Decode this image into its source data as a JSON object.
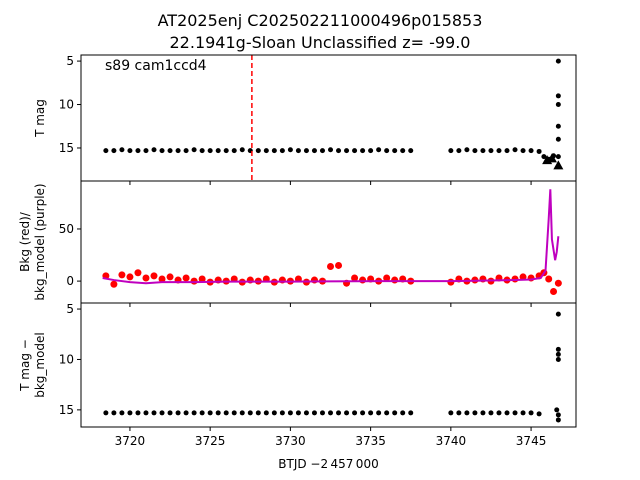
{
  "chart_data": [
    {
      "type": "scatter",
      "title": [
        "AT2025enj  C202502211000496p015853",
        "22.1941g-Sloan Unclassified z= -99.0"
      ],
      "annotation": "s89 cam1ccd4",
      "vline": 3727.6,
      "vline_color": "#ff0000",
      "ylabel": [
        "T mag"
      ],
      "xlim": [
        3716.95,
        3747.8
      ],
      "ylim": [
        18.8,
        4.3
      ],
      "xticks": [
        3720,
        3725,
        3730,
        3735,
        3740,
        3745
      ],
      "yticks": [
        5,
        10,
        15
      ],
      "show_xtick_labels": false,
      "series": [
        {
          "color": "#000000",
          "marker": "circle",
          "x": [
            3718.5,
            3719,
            3719.5,
            3720,
            3720.5,
            3721,
            3721.5,
            3722,
            3722.5,
            3723,
            3723.5,
            3724,
            3724.5,
            3725,
            3725.5,
            3726,
            3726.5,
            3727,
            3727.5,
            3728,
            3728.5,
            3729,
            3729.5,
            3730,
            3730.5,
            3731,
            3731.5,
            3732,
            3732.5,
            3733,
            3733.5,
            3734,
            3734.5,
            3735,
            3735.5,
            3736,
            3736.5,
            3737,
            3737.5,
            3740,
            3740.5,
            3741,
            3741.5,
            3742,
            3742.5,
            3743,
            3743.5,
            3744,
            3744.5,
            3745,
            3745.5,
            3745.8,
            3746.1,
            3746.4,
            3746.7,
            3746.7,
            3746.7,
            3746.7,
            3746.7,
            3746.7
          ],
          "values": [
            15.3,
            15.3,
            15.2,
            15.3,
            15.3,
            15.3,
            15.2,
            15.3,
            15.3,
            15.3,
            15.3,
            15.2,
            15.3,
            15.3,
            15.3,
            15.3,
            15.3,
            15.2,
            15.3,
            15.3,
            15.3,
            15.3,
            15.3,
            15.2,
            15.3,
            15.3,
            15.3,
            15.3,
            15.2,
            15.3,
            15.3,
            15.3,
            15.3,
            15.3,
            15.2,
            15.3,
            15.3,
            15.3,
            15.3,
            15.3,
            15.3,
            15.2,
            15.3,
            15.3,
            15.3,
            15.3,
            15.3,
            15.2,
            15.3,
            15.3,
            15.4,
            16.0,
            16.3,
            15.9,
            5,
            9,
            10,
            12.5,
            14,
            16
          ]
        },
        {
          "color": "#000000",
          "marker": "triangle",
          "x": [
            3746.0,
            3746.3,
            3746.7
          ],
          "values": [
            16.4,
            16.2,
            17.0
          ]
        }
      ]
    },
    {
      "type": "scatter",
      "ylabel": [
        "Bkg (red)/",
        "bkg_model (purple)"
      ],
      "xlim": [
        3716.95,
        3747.8
      ],
      "ylim": [
        -21,
        96
      ],
      "xticks": [
        3720,
        3725,
        3730,
        3735,
        3740,
        3745
      ],
      "yticks": [
        0,
        50
      ],
      "show_xtick_labels": false,
      "series": [
        {
          "color": "#ff0000",
          "marker": "circle",
          "x": [
            3718.5,
            3719,
            3719.5,
            3720,
            3720.5,
            3721,
            3721.5,
            3722,
            3722.5,
            3723,
            3723.5,
            3724,
            3724.5,
            3725,
            3725.5,
            3726,
            3726.5,
            3727,
            3727.5,
            3728,
            3728.5,
            3729,
            3729.5,
            3730,
            3730.5,
            3731,
            3731.5,
            3732,
            3732.5,
            3733,
            3733.5,
            3734,
            3734.5,
            3735,
            3735.5,
            3736,
            3736.5,
            3737,
            3737.5,
            3740,
            3740.5,
            3741,
            3741.5,
            3742,
            3742.5,
            3743,
            3743.5,
            3744,
            3744.5,
            3745,
            3745.5,
            3745.8,
            3746.1,
            3746.4,
            3746.7
          ],
          "values": [
            5,
            -3,
            6,
            4,
            8,
            3,
            5,
            2,
            4,
            1,
            3,
            0,
            2,
            -1,
            1,
            0,
            2,
            -1,
            1,
            0,
            2,
            -1,
            1,
            0,
            2,
            -1,
            1,
            0,
            14,
            15,
            -2,
            3,
            1,
            2,
            0,
            3,
            1,
            2,
            0,
            -1,
            2,
            0,
            1,
            2,
            0,
            3,
            1,
            2,
            4,
            3,
            5,
            8,
            2,
            -10,
            -2
          ]
        },
        {
          "color": "#bf00bf",
          "mode": "line",
          "x": [
            3718.3,
            3719,
            3720,
            3721,
            3722,
            3724,
            3726,
            3728,
            3730,
            3732,
            3734,
            3736,
            3738,
            3740,
            3742,
            3744,
            3745,
            3745.6,
            3745.9,
            3746.1,
            3746.2,
            3746.3,
            3746.4,
            3746.5,
            3746.6,
            3746.7
          ],
          "values": [
            3,
            1,
            -1,
            -2,
            -1,
            -1,
            -0.5,
            -0.5,
            -0.5,
            -0.3,
            -0.2,
            0,
            0,
            0,
            0.5,
            1,
            1.5,
            3,
            10,
            60,
            88,
            40,
            30,
            20,
            28,
            43
          ]
        }
      ]
    },
    {
      "type": "scatter",
      "ylabel": [
        "T mag −",
        "bkg_model"
      ],
      "xlabel": "BTJD −2 457 000",
      "xlim": [
        3716.95,
        3747.8
      ],
      "ylim": [
        16.7,
        4.4
      ],
      "xticks": [
        3720,
        3725,
        3730,
        3735,
        3740,
        3745
      ],
      "yticks": [
        5,
        10,
        15
      ],
      "show_xtick_labels": true,
      "series": [
        {
          "color": "#000000",
          "marker": "circle",
          "x": [
            3718.5,
            3719,
            3719.5,
            3720,
            3720.5,
            3721,
            3721.5,
            3722,
            3722.5,
            3723,
            3723.5,
            3724,
            3724.5,
            3725,
            3725.5,
            3726,
            3726.5,
            3727,
            3727.5,
            3728,
            3728.5,
            3729,
            3729.5,
            3730,
            3730.5,
            3731,
            3731.5,
            3732,
            3732.5,
            3733,
            3733.5,
            3734,
            3734.5,
            3735,
            3735.5,
            3736,
            3736.5,
            3737,
            3737.5,
            3740,
            3740.5,
            3741,
            3741.5,
            3742,
            3742.5,
            3743,
            3743.5,
            3744,
            3744.5,
            3745,
            3745.5,
            3746.6,
            3746.7,
            3746.7,
            3746.7,
            3746.7,
            3746.7,
            3746.7
          ],
          "values": [
            15.3,
            15.3,
            15.3,
            15.3,
            15.3,
            15.3,
            15.3,
            15.3,
            15.3,
            15.3,
            15.3,
            15.3,
            15.3,
            15.3,
            15.3,
            15.3,
            15.3,
            15.3,
            15.3,
            15.3,
            15.3,
            15.3,
            15.3,
            15.3,
            15.3,
            15.3,
            15.3,
            15.3,
            15.3,
            15.3,
            15.3,
            15.3,
            15.3,
            15.3,
            15.3,
            15.3,
            15.3,
            15.3,
            15.3,
            15.3,
            15.3,
            15.3,
            15.3,
            15.3,
            15.3,
            15.3,
            15.3,
            15.3,
            15.3,
            15.3,
            15.4,
            15,
            5.5,
            9,
            9.5,
            10,
            15.5,
            16
          ]
        }
      ]
    }
  ]
}
